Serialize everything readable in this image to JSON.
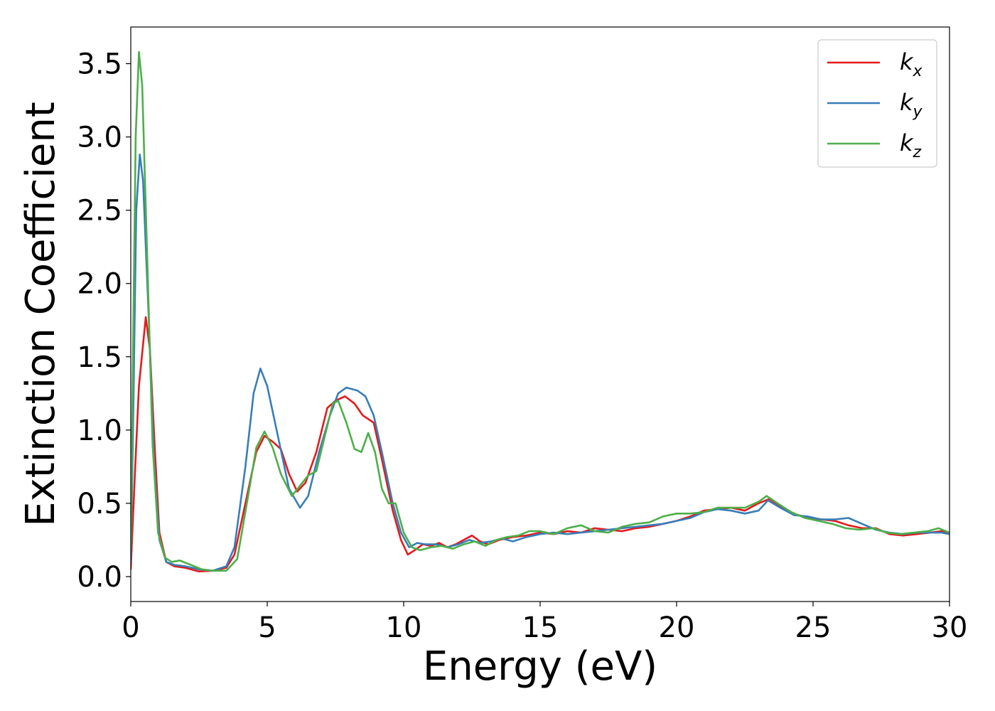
{
  "chart_data": {
    "type": "line",
    "xlabel": "Energy (eV)",
    "ylabel": "Extinction Coefficient",
    "xlim": [
      0,
      30
    ],
    "ylim": [
      -0.17,
      3.75
    ],
    "xticks": [
      0,
      5,
      10,
      15,
      20,
      25,
      30
    ],
    "yticks": [
      0.0,
      0.5,
      1.0,
      1.5,
      2.0,
      2.5,
      3.0,
      3.5
    ],
    "xtick_labels": [
      "0",
      "5",
      "10",
      "15",
      "20",
      "25",
      "30"
    ],
    "ytick_labels": [
      "0.0",
      "0.5",
      "1.0",
      "1.5",
      "2.0",
      "2.5",
      "3.0",
      "3.5"
    ],
    "grid": false,
    "legend_position": "top-right",
    "series": [
      {
        "name": "k_x",
        "label_base": "k",
        "label_sub": "x",
        "color": "#e41a1c",
        "points": [
          [
            0,
            0.05
          ],
          [
            0.15,
            0.7
          ],
          [
            0.3,
            1.3
          ],
          [
            0.55,
            1.77
          ],
          [
            0.7,
            1.55
          ],
          [
            0.9,
            0.8
          ],
          [
            1.05,
            0.3
          ],
          [
            1.3,
            0.1
          ],
          [
            1.6,
            0.07
          ],
          [
            2.0,
            0.06
          ],
          [
            2.5,
            0.035
          ],
          [
            3.0,
            0.04
          ],
          [
            3.5,
            0.06
          ],
          [
            3.8,
            0.15
          ],
          [
            4.2,
            0.5
          ],
          [
            4.6,
            0.85
          ],
          [
            4.9,
            0.96
          ],
          [
            5.2,
            0.92
          ],
          [
            5.5,
            0.87
          ],
          [
            5.8,
            0.7
          ],
          [
            6.1,
            0.58
          ],
          [
            6.4,
            0.64
          ],
          [
            6.8,
            0.85
          ],
          [
            7.2,
            1.15
          ],
          [
            7.5,
            1.2
          ],
          [
            7.85,
            1.23
          ],
          [
            8.2,
            1.18
          ],
          [
            8.5,
            1.1
          ],
          [
            8.9,
            1.05
          ],
          [
            9.2,
            0.8
          ],
          [
            9.6,
            0.45
          ],
          [
            9.9,
            0.25
          ],
          [
            10.15,
            0.15
          ],
          [
            10.4,
            0.18
          ],
          [
            10.7,
            0.22
          ],
          [
            11.0,
            0.21
          ],
          [
            11.3,
            0.23
          ],
          [
            11.6,
            0.2
          ],
          [
            11.9,
            0.22
          ],
          [
            12.2,
            0.25
          ],
          [
            12.5,
            0.28
          ],
          [
            12.8,
            0.24
          ],
          [
            13.1,
            0.22
          ],
          [
            13.5,
            0.25
          ],
          [
            14.0,
            0.27
          ],
          [
            14.5,
            0.28
          ],
          [
            15.0,
            0.3
          ],
          [
            15.5,
            0.29
          ],
          [
            16.0,
            0.31
          ],
          [
            16.5,
            0.3
          ],
          [
            17.0,
            0.33
          ],
          [
            17.5,
            0.32
          ],
          [
            18.0,
            0.31
          ],
          [
            18.5,
            0.33
          ],
          [
            19.0,
            0.34
          ],
          [
            19.5,
            0.36
          ],
          [
            20.0,
            0.38
          ],
          [
            20.5,
            0.41
          ],
          [
            21.0,
            0.45
          ],
          [
            21.5,
            0.46
          ],
          [
            22.0,
            0.47
          ],
          [
            22.5,
            0.45
          ],
          [
            23.0,
            0.5
          ],
          [
            23.4,
            0.53
          ],
          [
            23.8,
            0.48
          ],
          [
            24.3,
            0.43
          ],
          [
            24.8,
            0.4
          ],
          [
            25.3,
            0.39
          ],
          [
            25.8,
            0.38
          ],
          [
            26.3,
            0.35
          ],
          [
            26.8,
            0.33
          ],
          [
            27.3,
            0.33
          ],
          [
            27.8,
            0.29
          ],
          [
            28.3,
            0.28
          ],
          [
            28.8,
            0.29
          ],
          [
            29.3,
            0.3
          ],
          [
            29.7,
            0.31
          ],
          [
            30,
            0.3
          ]
        ]
      },
      {
        "name": "k_y",
        "label_base": "k",
        "label_sub": "y",
        "color": "#377eb8",
        "points": [
          [
            0,
            0.1
          ],
          [
            0.1,
            1.2
          ],
          [
            0.2,
            2.5
          ],
          [
            0.33,
            2.88
          ],
          [
            0.45,
            2.7
          ],
          [
            0.65,
            1.8
          ],
          [
            0.85,
            0.8
          ],
          [
            1.05,
            0.25
          ],
          [
            1.3,
            0.1
          ],
          [
            1.6,
            0.08
          ],
          [
            2.0,
            0.07
          ],
          [
            2.5,
            0.05
          ],
          [
            3.0,
            0.04
          ],
          [
            3.5,
            0.07
          ],
          [
            3.8,
            0.2
          ],
          [
            4.2,
            0.75
          ],
          [
            4.5,
            1.25
          ],
          [
            4.75,
            1.42
          ],
          [
            5.0,
            1.3
          ],
          [
            5.4,
            0.95
          ],
          [
            5.8,
            0.6
          ],
          [
            6.2,
            0.47
          ],
          [
            6.5,
            0.55
          ],
          [
            6.9,
            0.85
          ],
          [
            7.3,
            1.1
          ],
          [
            7.6,
            1.25
          ],
          [
            7.9,
            1.29
          ],
          [
            8.3,
            1.27
          ],
          [
            8.6,
            1.23
          ],
          [
            8.9,
            1.1
          ],
          [
            9.2,
            0.85
          ],
          [
            9.6,
            0.5
          ],
          [
            9.9,
            0.3
          ],
          [
            10.2,
            0.2
          ],
          [
            10.5,
            0.23
          ],
          [
            10.8,
            0.22
          ],
          [
            11.2,
            0.22
          ],
          [
            11.6,
            0.2
          ],
          [
            12.0,
            0.22
          ],
          [
            12.4,
            0.25
          ],
          [
            12.8,
            0.23
          ],
          [
            13.2,
            0.24
          ],
          [
            13.6,
            0.26
          ],
          [
            14.0,
            0.24
          ],
          [
            14.5,
            0.27
          ],
          [
            15.0,
            0.29
          ],
          [
            15.5,
            0.3
          ],
          [
            16.0,
            0.29
          ],
          [
            16.5,
            0.3
          ],
          [
            17.0,
            0.31
          ],
          [
            17.5,
            0.32
          ],
          [
            18.0,
            0.33
          ],
          [
            18.5,
            0.34
          ],
          [
            19.0,
            0.35
          ],
          [
            19.5,
            0.36
          ],
          [
            20.0,
            0.38
          ],
          [
            20.5,
            0.4
          ],
          [
            21.0,
            0.44
          ],
          [
            21.5,
            0.46
          ],
          [
            22.0,
            0.45
          ],
          [
            22.5,
            0.43
          ],
          [
            23.0,
            0.45
          ],
          [
            23.35,
            0.52
          ],
          [
            23.8,
            0.47
          ],
          [
            24.3,
            0.42
          ],
          [
            24.8,
            0.41
          ],
          [
            25.3,
            0.39
          ],
          [
            25.8,
            0.39
          ],
          [
            26.3,
            0.4
          ],
          [
            26.8,
            0.36
          ],
          [
            27.3,
            0.32
          ],
          [
            27.8,
            0.3
          ],
          [
            28.3,
            0.29
          ],
          [
            28.8,
            0.3
          ],
          [
            29.3,
            0.3
          ],
          [
            29.7,
            0.3
          ],
          [
            30,
            0.29
          ]
        ]
      },
      {
        "name": "k_z",
        "label_base": "k",
        "label_sub": "z",
        "color": "#4daf4a",
        "points": [
          [
            0,
            0.2
          ],
          [
            0.08,
            1.5
          ],
          [
            0.18,
            3.0
          ],
          [
            0.3,
            3.58
          ],
          [
            0.42,
            3.35
          ],
          [
            0.6,
            2.2
          ],
          [
            0.8,
            0.9
          ],
          [
            1.0,
            0.3
          ],
          [
            1.25,
            0.13
          ],
          [
            1.5,
            0.1
          ],
          [
            1.8,
            0.11
          ],
          [
            2.2,
            0.08
          ],
          [
            2.6,
            0.05
          ],
          [
            3.0,
            0.04
          ],
          [
            3.5,
            0.04
          ],
          [
            3.9,
            0.12
          ],
          [
            4.3,
            0.55
          ],
          [
            4.6,
            0.88
          ],
          [
            4.9,
            0.99
          ],
          [
            5.2,
            0.88
          ],
          [
            5.5,
            0.7
          ],
          [
            5.9,
            0.55
          ],
          [
            6.2,
            0.62
          ],
          [
            6.5,
            0.69
          ],
          [
            6.8,
            0.72
          ],
          [
            7.1,
            0.95
          ],
          [
            7.4,
            1.18
          ],
          [
            7.6,
            1.2
          ],
          [
            7.9,
            1.05
          ],
          [
            8.2,
            0.87
          ],
          [
            8.45,
            0.85
          ],
          [
            8.7,
            0.98
          ],
          [
            8.95,
            0.85
          ],
          [
            9.2,
            0.6
          ],
          [
            9.45,
            0.5
          ],
          [
            9.7,
            0.5
          ],
          [
            10.0,
            0.3
          ],
          [
            10.3,
            0.2
          ],
          [
            10.6,
            0.18
          ],
          [
            11.0,
            0.2
          ],
          [
            11.4,
            0.21
          ],
          [
            11.8,
            0.19
          ],
          [
            12.2,
            0.22
          ],
          [
            12.6,
            0.24
          ],
          [
            13.0,
            0.21
          ],
          [
            13.4,
            0.25
          ],
          [
            13.8,
            0.27
          ],
          [
            14.2,
            0.28
          ],
          [
            14.6,
            0.31
          ],
          [
            15.0,
            0.31
          ],
          [
            15.5,
            0.29
          ],
          [
            16.0,
            0.33
          ],
          [
            16.5,
            0.35
          ],
          [
            17.0,
            0.31
          ],
          [
            17.5,
            0.3
          ],
          [
            18.0,
            0.34
          ],
          [
            18.5,
            0.36
          ],
          [
            19.0,
            0.37
          ],
          [
            19.5,
            0.41
          ],
          [
            20.0,
            0.43
          ],
          [
            20.5,
            0.43
          ],
          [
            21.0,
            0.44
          ],
          [
            21.5,
            0.47
          ],
          [
            22.0,
            0.47
          ],
          [
            22.5,
            0.47
          ],
          [
            23.0,
            0.51
          ],
          [
            23.3,
            0.55
          ],
          [
            23.7,
            0.5
          ],
          [
            24.2,
            0.44
          ],
          [
            24.7,
            0.4
          ],
          [
            25.2,
            0.38
          ],
          [
            25.7,
            0.36
          ],
          [
            26.2,
            0.33
          ],
          [
            26.7,
            0.32
          ],
          [
            27.2,
            0.33
          ],
          [
            27.7,
            0.3
          ],
          [
            28.2,
            0.29
          ],
          [
            28.7,
            0.3
          ],
          [
            29.2,
            0.31
          ],
          [
            29.6,
            0.33
          ],
          [
            30,
            0.3
          ]
        ]
      }
    ]
  }
}
